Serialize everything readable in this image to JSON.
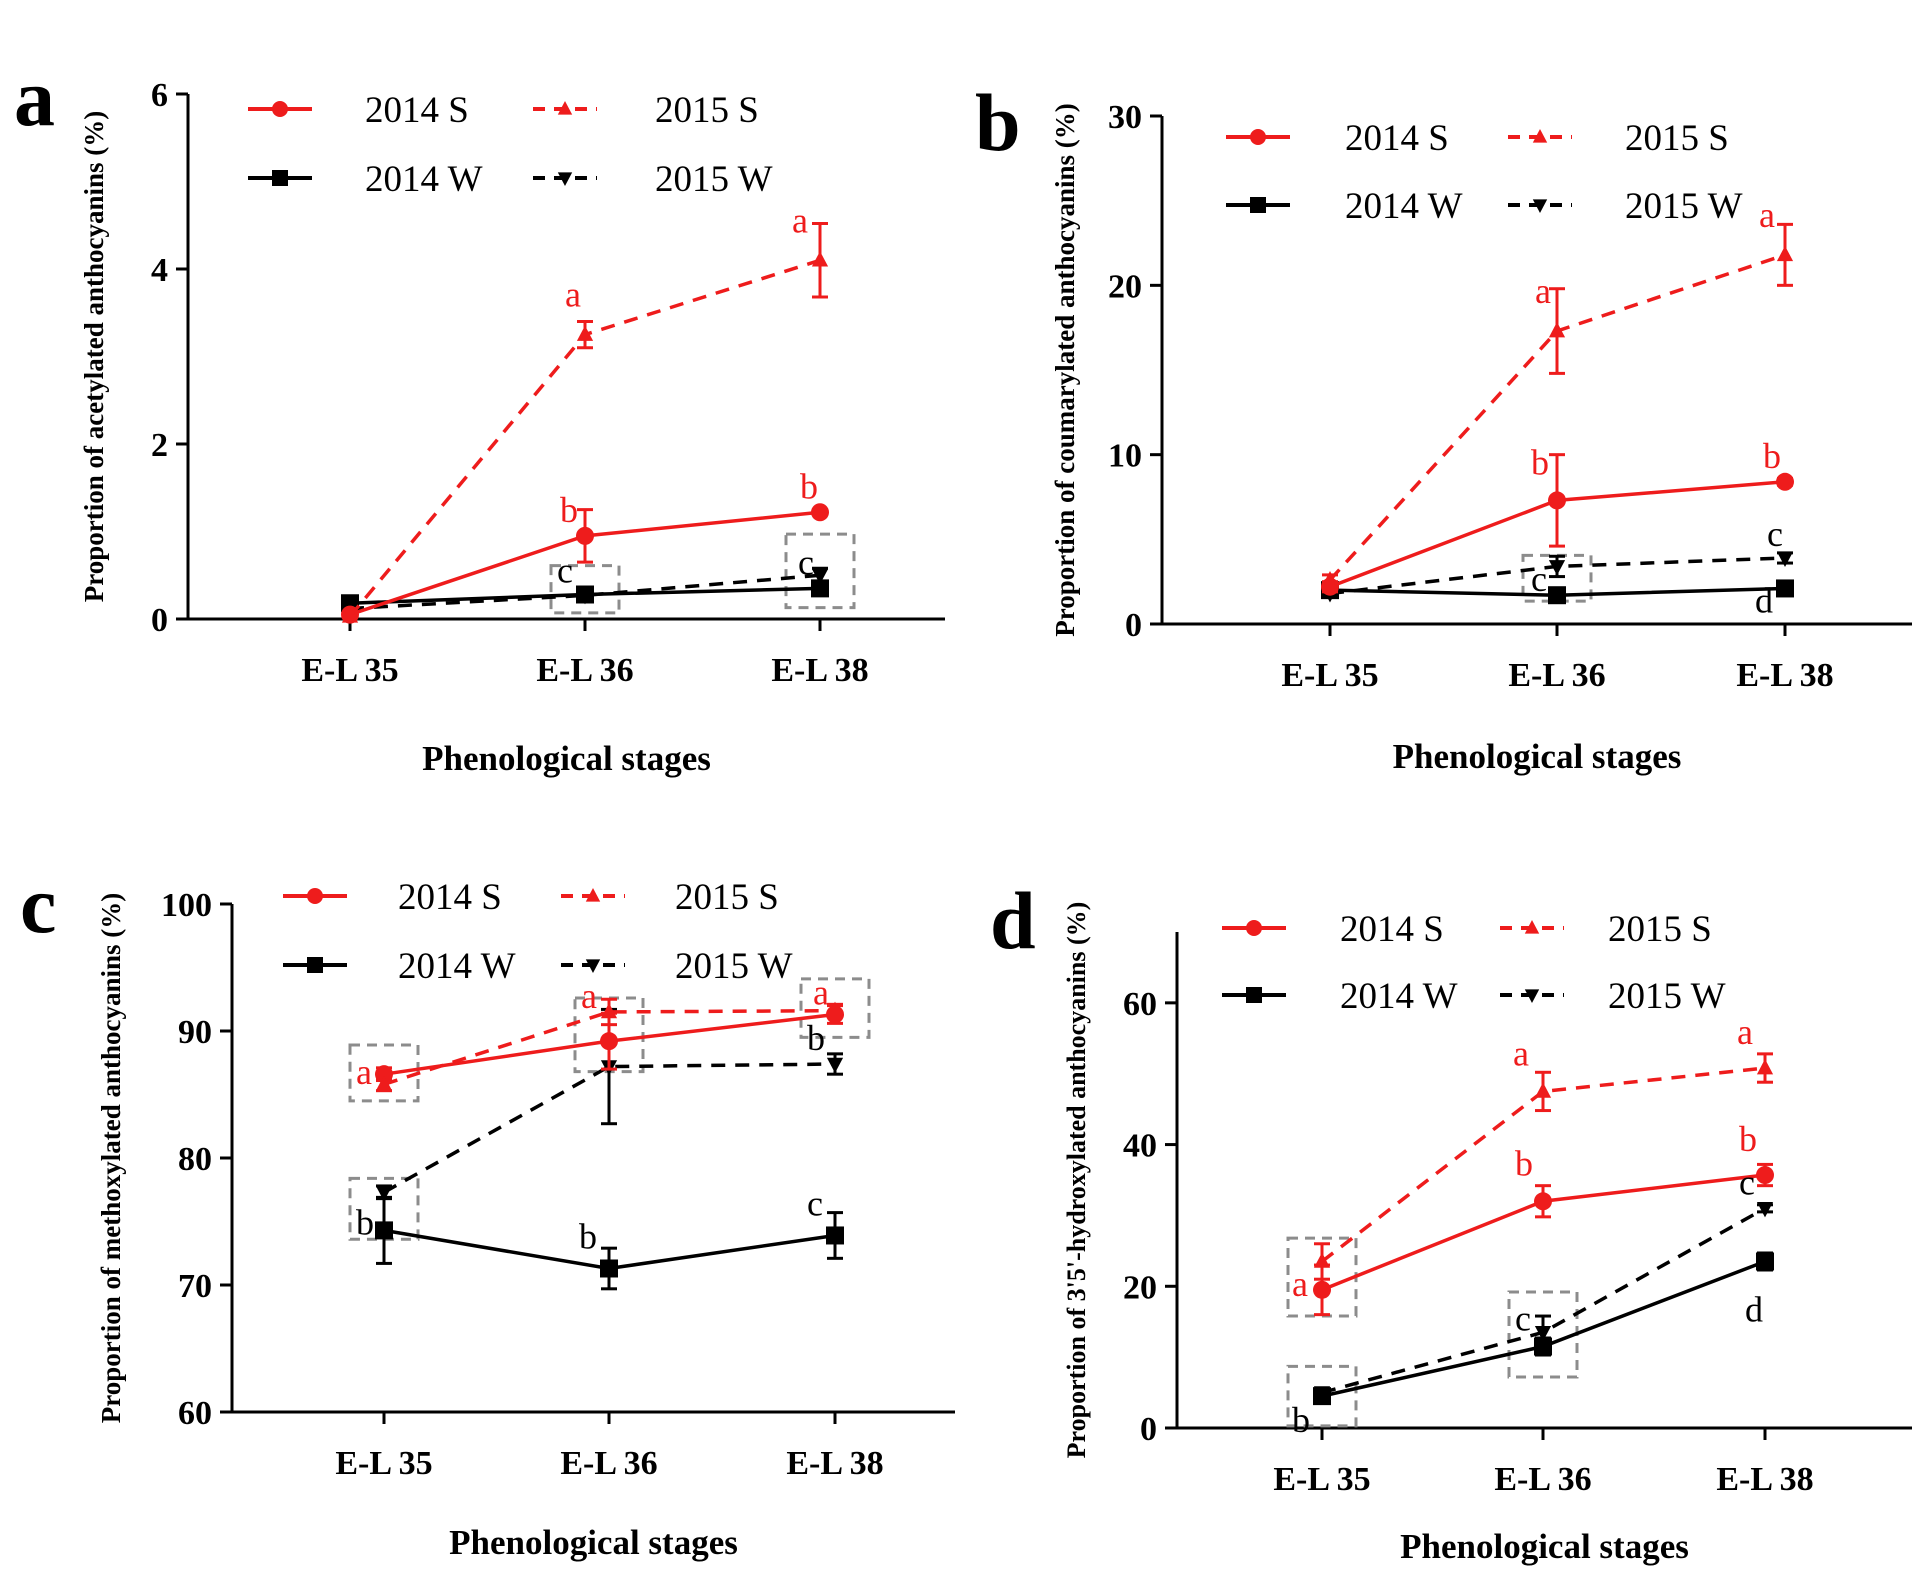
{
  "figure": {
    "colors": {
      "S": "#ee1c1c",
      "W": "#000000",
      "box": "#8c8c8c"
    },
    "legend": [
      "2014 S",
      "2015 S",
      "2014 W",
      "2015 W"
    ],
    "x_axis_title": "Phenological stages"
  },
  "chart_data": [
    {
      "panel": "a",
      "type": "line",
      "title": "",
      "xlabel": "Phenological stages",
      "ylabel": "Proportion of acetylated anthocyanins (%)",
      "categories": [
        "E-L 35",
        "E-L 36",
        "E-L 38"
      ],
      "ylim": [
        0,
        6
      ],
      "yticks": [
        "0",
        "2",
        "4",
        "6"
      ],
      "series": [
        {
          "name": "2014 S",
          "values": [
            0.05,
            0.95,
            1.22
          ],
          "errors": [
            0.0,
            0.3,
            0.03
          ]
        },
        {
          "name": "2015 S",
          "values": [
            0.03,
            3.25,
            4.1
          ],
          "errors": [
            0.0,
            0.15,
            0.42
          ]
        },
        {
          "name": "2014 W",
          "values": [
            0.18,
            0.28,
            0.35
          ],
          "errors": [
            0.03,
            0.05,
            0.07
          ]
        },
        {
          "name": "2015 W",
          "values": [
            0.12,
            0.27,
            0.5
          ],
          "errors": [
            0.02,
            0.04,
            0.08
          ]
        }
      ],
      "annotations": [
        {
          "text": "a",
          "series": "2015 S",
          "point": 1
        },
        {
          "text": "a",
          "series": "2015 S",
          "point": 2
        },
        {
          "text": "b",
          "series": "2014 S",
          "point": 1
        },
        {
          "text": "b",
          "series": "2014 S",
          "point": 2
        },
        {
          "text": "c",
          "series": "2014 W",
          "point": 1
        },
        {
          "text": "c",
          "series": "2014 W",
          "point": 2
        }
      ]
    },
    {
      "panel": "b",
      "type": "line",
      "title": "",
      "xlabel": "Phenological stages",
      "ylabel": "Proportion of coumarylated anthocyanins (%)",
      "categories": [
        "E-L 35",
        "E-L 36",
        "E-L 38"
      ],
      "ylim": [
        0,
        30
      ],
      "yticks": [
        "0",
        "10",
        "20",
        "30"
      ],
      "series": [
        {
          "name": "2014 S",
          "values": [
            2.2,
            7.3,
            8.4
          ],
          "errors": [
            0.3,
            2.7,
            0.2
          ]
        },
        {
          "name": "2015 S",
          "values": [
            2.6,
            17.3,
            21.8
          ],
          "errors": [
            0.3,
            2.5,
            1.8
          ]
        },
        {
          "name": "2014 W",
          "values": [
            2.0,
            1.7,
            2.1
          ],
          "errors": [
            0.2,
            0.3,
            0.3
          ]
        },
        {
          "name": "2015 W",
          "values": [
            1.8,
            3.4,
            3.9
          ],
          "errors": [
            0.2,
            0.6,
            0.3
          ]
        }
      ],
      "annotations": [
        {
          "text": "a",
          "series": "2015 S",
          "point": 1
        },
        {
          "text": "a",
          "series": "2015 S",
          "point": 2
        },
        {
          "text": "b",
          "series": "2014 S",
          "point": 1
        },
        {
          "text": "b",
          "series": "2014 S",
          "point": 2
        },
        {
          "text": "c",
          "series": "2014 W",
          "point": 1
        },
        {
          "text": "c",
          "series": "2015 W",
          "point": 2
        },
        {
          "text": "d",
          "series": "2014 W",
          "point": 2
        }
      ]
    },
    {
      "panel": "c",
      "type": "line",
      "title": "",
      "xlabel": "Phenological stages",
      "ylabel": "Proportion of methoxylated anthocyanins (%)",
      "categories": [
        "E-L 35",
        "E-L 36",
        "E-L 38"
      ],
      "ylim": [
        60,
        100
      ],
      "yticks": [
        "60",
        "70",
        "80",
        "90",
        "100"
      ],
      "series": [
        {
          "name": "2014 S",
          "values": [
            86.6,
            89.2,
            91.3
          ],
          "errors": [
            0.5,
            2.2,
            0.7
          ]
        },
        {
          "name": "2015 S",
          "values": [
            85.8,
            91.5,
            91.6
          ],
          "errors": [
            0.5,
            1.0,
            0.5
          ]
        },
        {
          "name": "2014 W",
          "values": [
            74.3,
            71.3,
            73.9
          ],
          "errors": [
            2.6,
            1.6,
            1.8
          ]
        },
        {
          "name": "2015 W",
          "values": [
            77.3,
            87.2,
            87.4
          ],
          "errors": [
            0.5,
            4.5,
            0.8
          ]
        }
      ],
      "annotations": [
        {
          "text": "a",
          "series": "2014 S",
          "point": 0
        },
        {
          "text": "a",
          "series": "2015 S",
          "point": 1
        },
        {
          "text": "a",
          "series": "2015 S",
          "point": 2
        },
        {
          "text": "b",
          "series": "2014 W",
          "point": 0
        },
        {
          "text": "b",
          "series": "2014 W",
          "point": 1
        },
        {
          "text": "b",
          "series": "2015 W",
          "point": 2
        },
        {
          "text": "c",
          "series": "2014 W",
          "point": 2
        }
      ]
    },
    {
      "panel": "d",
      "type": "line",
      "title": "",
      "xlabel": "Phenological stages",
      "ylabel": "Proportion of 3'5'-hydroxylated anthocyanins (%)",
      "categories": [
        "E-L 35",
        "E-L 36",
        "E-L 38"
      ],
      "ylim": [
        0,
        70
      ],
      "yticks": [
        "0",
        "20",
        "40",
        "60"
      ],
      "series": [
        {
          "name": "2014 S",
          "values": [
            19.5,
            32.0,
            35.7
          ],
          "errors": [
            3.5,
            2.2,
            1.5
          ]
        },
        {
          "name": "2015 S",
          "values": [
            23.5,
            47.5,
            50.8
          ],
          "errors": [
            2.5,
            2.7,
            2.0
          ]
        },
        {
          "name": "2014 W",
          "values": [
            4.5,
            11.5,
            23.5
          ],
          "errors": [
            0.5,
            1.2,
            1.2
          ]
        },
        {
          "name": "2015 W",
          "values": [
            5.0,
            13.5,
            31.0
          ],
          "errors": [
            0.5,
            2.3,
            0.5
          ]
        }
      ],
      "annotations": [
        {
          "text": "a",
          "series": "2014 S",
          "point": 0
        },
        {
          "text": "a",
          "series": "2015 S",
          "point": 1
        },
        {
          "text": "a",
          "series": "2015 S",
          "point": 2
        },
        {
          "text": "b",
          "series": "2014 S",
          "point": 1
        },
        {
          "text": "b",
          "series": "2014 S",
          "point": 2
        },
        {
          "text": "b",
          "series": "2014 W",
          "point": 0
        },
        {
          "text": "c",
          "series": "2014 W",
          "point": 1
        },
        {
          "text": "c",
          "series": "2015 W",
          "point": 2
        },
        {
          "text": "d",
          "series": "2014 W",
          "point": 2
        }
      ]
    }
  ]
}
